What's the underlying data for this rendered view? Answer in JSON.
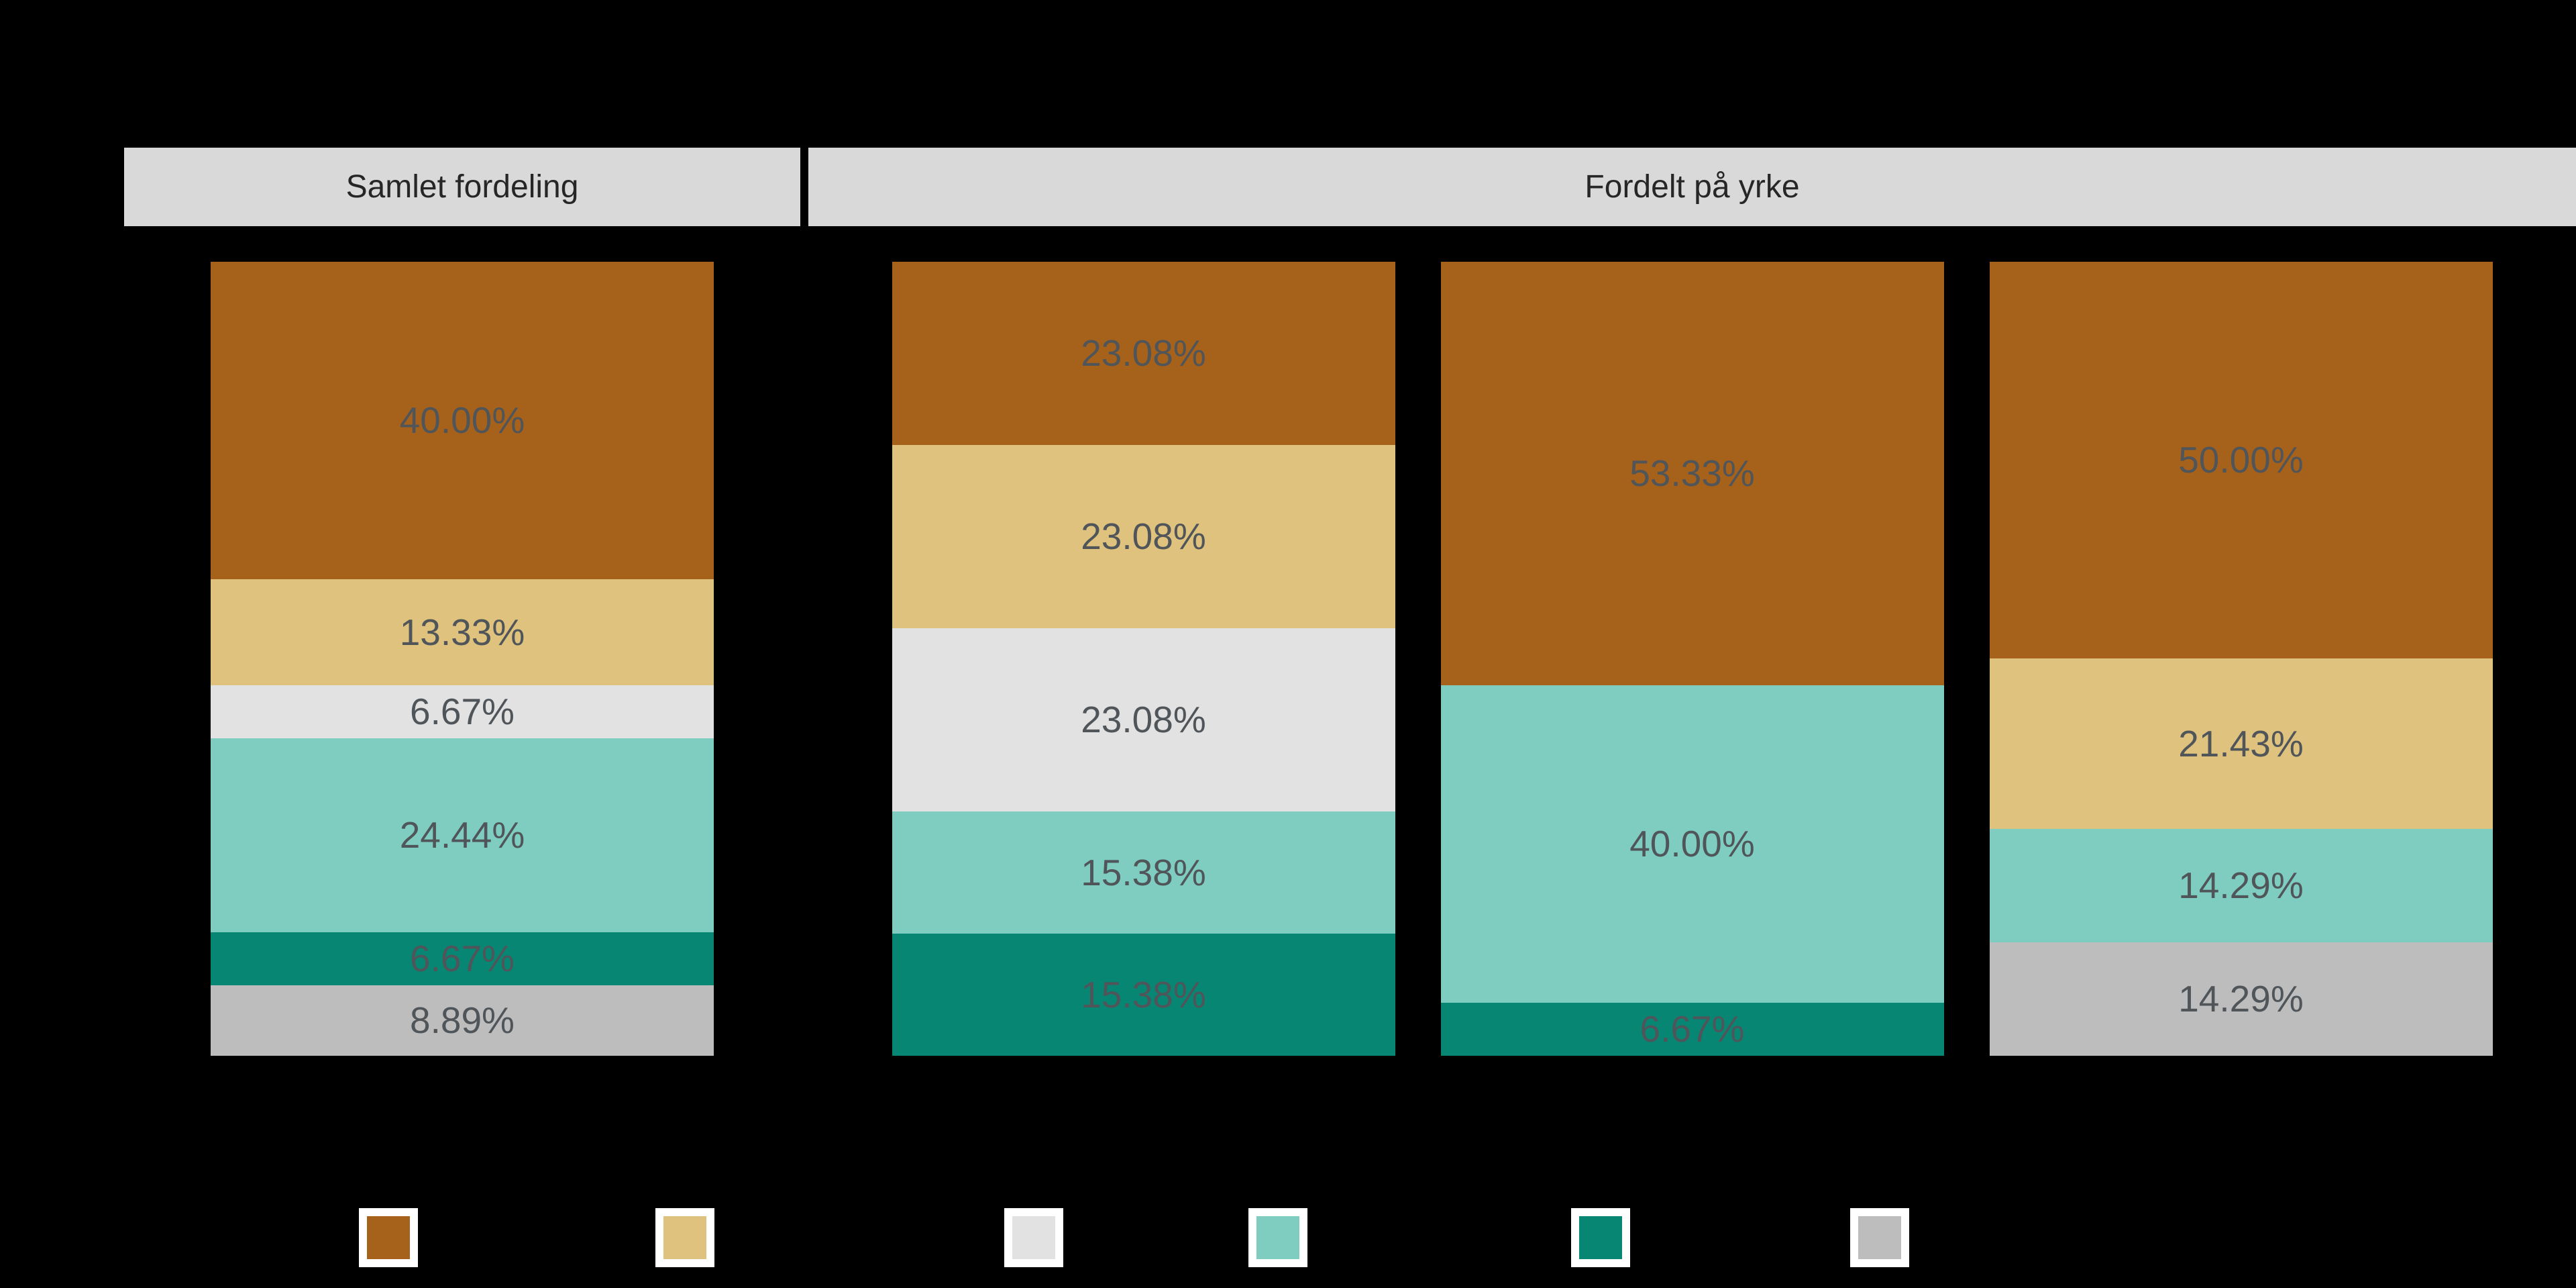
{
  "palette": {
    "brown": "#a6611a",
    "tan": "#dfc27d",
    "light_gray": "#e2e2e2",
    "light_teal": "#7fcdc1",
    "dark_teal": "#078674",
    "gray": "#bdbdbd",
    "facet_strip_bg": "#d9d9d9",
    "strip_text": "#262626",
    "segment_label_text": "#50555a",
    "background": "#000000",
    "legend_swatch_border": "#ffffff"
  },
  "chart_data": {
    "type": "bar",
    "stacking": "percent",
    "orientation": "vertical",
    "value_format": "0.00%",
    "labels_visible": true,
    "facets": [
      {
        "title": "Samlet fordeling",
        "bars": [
          {
            "segments": [
              {
                "color": "brown",
                "value": 40.0,
                "label": "40.00%"
              },
              {
                "color": "tan",
                "value": 13.33,
                "label": "13.33%"
              },
              {
                "color": "light_gray",
                "value": 6.67,
                "label": "6.67%"
              },
              {
                "color": "light_teal",
                "value": 24.44,
                "label": "24.44%"
              },
              {
                "color": "dark_teal",
                "value": 6.67,
                "label": "6.67%"
              },
              {
                "color": "gray",
                "value": 8.89,
                "label": "8.89%"
              }
            ]
          }
        ]
      },
      {
        "title": "Fordelt på yrke",
        "bars": [
          {
            "segments": [
              {
                "color": "brown",
                "value": 23.08,
                "label": "23.08%"
              },
              {
                "color": "tan",
                "value": 23.08,
                "label": "23.08%"
              },
              {
                "color": "light_gray",
                "value": 23.08,
                "label": "23.08%"
              },
              {
                "color": "light_teal",
                "value": 15.38,
                "label": "15.38%"
              },
              {
                "color": "dark_teal",
                "value": 15.38,
                "label": "15.38%"
              }
            ]
          },
          {
            "segments": [
              {
                "color": "brown",
                "value": 53.33,
                "label": "53.33%"
              },
              {
                "color": "light_teal",
                "value": 40.0,
                "label": "40.00%"
              },
              {
                "color": "dark_teal",
                "value": 6.67,
                "label": "6.67%"
              }
            ]
          },
          {
            "segments": [
              {
                "color": "brown",
                "value": 50.0,
                "label": "50.00%"
              },
              {
                "color": "tan",
                "value": 21.43,
                "label": "21.43%"
              },
              {
                "color": "light_teal",
                "value": 14.29,
                "label": "14.29%"
              },
              {
                "color": "gray",
                "value": 14.29,
                "label": "14.29%"
              }
            ]
          }
        ]
      }
    ],
    "legend": {
      "position": "bottom",
      "keys": [
        "brown",
        "tan",
        "light_gray",
        "light_teal",
        "dark_teal",
        "gray"
      ]
    }
  }
}
